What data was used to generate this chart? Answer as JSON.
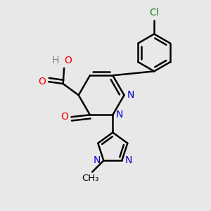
{
  "bg_color": "#e8e8e8",
  "bond_color": "#000000",
  "N_color": "#0000cd",
  "O_color": "#ff0000",
  "Cl_color": "#228b22",
  "H_color": "#808080",
  "bond_width": 1.8,
  "font_size": 10,
  "fig_size": [
    3.0,
    3.0
  ],
  "dpi": 100,
  "xlim": [
    0,
    10
  ],
  "ylim": [
    0,
    10
  ]
}
